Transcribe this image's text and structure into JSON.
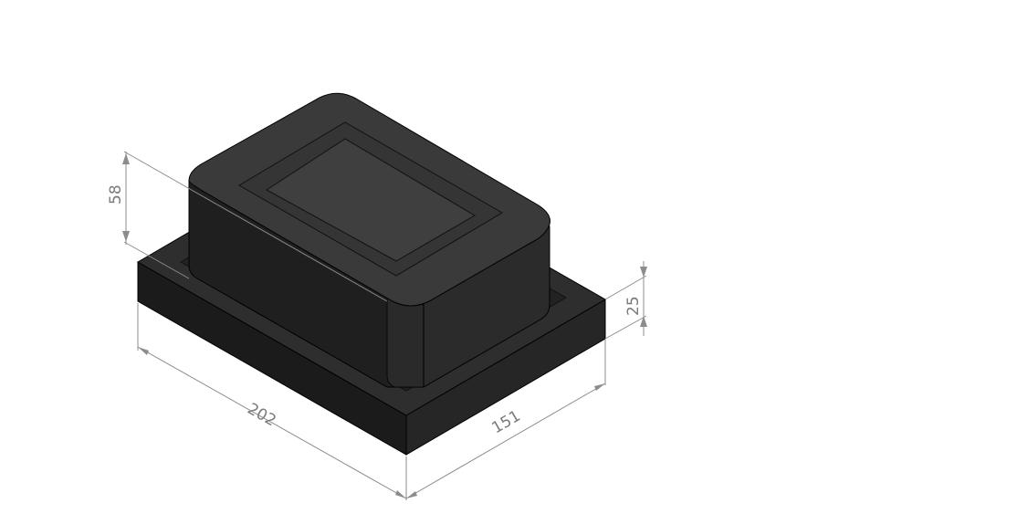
{
  "drawing": {
    "part_color": "#2f2f2f",
    "dimension_color": "#8c8c8c",
    "dimensions": {
      "overall_length": "202",
      "overall_width": "151",
      "base_height": "25",
      "body_height": "58"
    }
  }
}
